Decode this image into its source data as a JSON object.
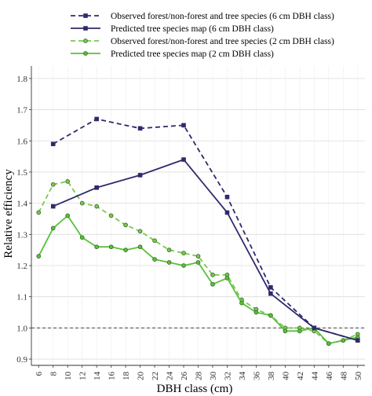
{
  "chart_data": {
    "type": "line",
    "xlabel": "DBH class (cm)",
    "ylabel": "Relative efficiency",
    "x_ticks": [
      6,
      8,
      10,
      12,
      14,
      16,
      18,
      20,
      22,
      24,
      26,
      28,
      30,
      32,
      34,
      36,
      38,
      40,
      42,
      44,
      46,
      48,
      50
    ],
    "y_ticks": [
      0.9,
      1.0,
      1.1,
      1.2,
      1.3,
      1.4,
      1.5,
      1.6,
      1.7,
      1.8
    ],
    "xlim": [
      5,
      51
    ],
    "ylim": [
      0.88,
      1.84
    ],
    "grid": "horizontal",
    "reference_line": 1.0,
    "legend_position": "top",
    "colors": {
      "navy": "#2e2a6b",
      "green_dashed": "#7cc653",
      "green_solid": "#58c13a",
      "marker_edge_green": "#3d6e2a",
      "grid": "#dcdcdc"
    },
    "series": [
      {
        "name": "Observed forest/non-forest and tree species (6 cm DBH class)",
        "style": "dashed",
        "marker": "square",
        "color": "#2e2a6b",
        "x": [
          8,
          14,
          20,
          26,
          32,
          38,
          44,
          50
        ],
        "y": [
          1.59,
          1.67,
          1.64,
          1.65,
          1.42,
          1.13,
          1.0,
          0.96
        ]
      },
      {
        "name": "Predicted tree species map (6 cm DBH class)",
        "style": "solid",
        "marker": "square",
        "color": "#2e2a6b",
        "x": [
          8,
          14,
          20,
          26,
          32,
          38,
          44,
          50
        ],
        "y": [
          1.39,
          1.45,
          1.49,
          1.54,
          1.37,
          1.11,
          1.0,
          0.96
        ]
      },
      {
        "name": "Observed forest/non-forest and tree species (2 cm DBH class)",
        "style": "dashed",
        "marker": "circle",
        "color": "#7cc653",
        "x": [
          6,
          8,
          10,
          12,
          14,
          16,
          18,
          20,
          22,
          24,
          26,
          28,
          30,
          32,
          34,
          36,
          38,
          40,
          42,
          44,
          46,
          48,
          50
        ],
        "y": [
          1.37,
          1.46,
          1.47,
          1.4,
          1.39,
          1.36,
          1.33,
          1.31,
          1.28,
          1.25,
          1.24,
          1.23,
          1.17,
          1.17,
          1.09,
          1.06,
          1.04,
          1.0,
          1.0,
          0.99,
          0.95,
          0.96,
          0.98
        ]
      },
      {
        "name": "Predicted tree species map (2 cm DBH class)",
        "style": "solid",
        "marker": "circle",
        "color": "#58c13a",
        "x": [
          6,
          8,
          10,
          12,
          14,
          16,
          18,
          20,
          22,
          24,
          26,
          28,
          30,
          32,
          34,
          36,
          38,
          40,
          42,
          44,
          46,
          48,
          50
        ],
        "y": [
          1.23,
          1.32,
          1.36,
          1.29,
          1.26,
          1.26,
          1.25,
          1.26,
          1.22,
          1.21,
          1.2,
          1.21,
          1.14,
          1.16,
          1.08,
          1.05,
          1.04,
          0.99,
          0.99,
          1.0,
          0.95,
          0.96,
          0.97
        ]
      }
    ]
  }
}
